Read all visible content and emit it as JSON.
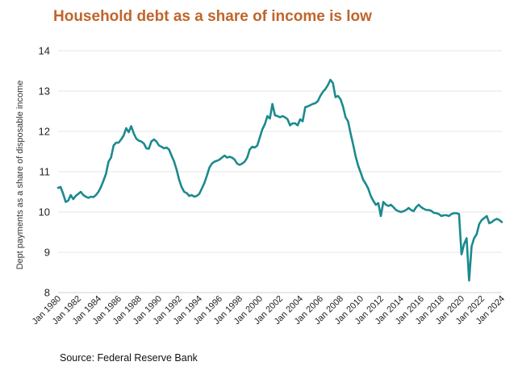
{
  "title": "Household debt as a share of income is low",
  "source": "Source: Federal Reserve Bank",
  "chart_data": {
    "type": "line",
    "ylabel": "Dept payments as a share of disposable income",
    "xlabel": "",
    "ylim": [
      8,
      14
    ],
    "yticks": [
      8,
      9,
      10,
      11,
      12,
      13,
      14
    ],
    "xlim": [
      1980.0,
      2024.0
    ],
    "xtick_labels": [
      "Jan 1980",
      "Jan 1982",
      "Jan 1984",
      "Jan 1986",
      "Jan 1988",
      "Jan 1990",
      "Jan 1992",
      "Jan 1994",
      "Jan 1996",
      "Jan 1998",
      "Jan 2000",
      "Jan 2002",
      "Jan 2004",
      "Jan 2006",
      "Jan 2008",
      "Jan 2010",
      "Jan 2012",
      "Jan 2014",
      "Jan 2016",
      "Jan 2018",
      "Jan 2020",
      "Jan 2022",
      "Jan 2024"
    ],
    "xtick_values": [
      1980,
      1982,
      1984,
      1986,
      1988,
      1990,
      1992,
      1994,
      1996,
      1998,
      2000,
      2002,
      2004,
      2006,
      2008,
      2010,
      2012,
      2014,
      2016,
      2018,
      2020,
      2022,
      2024
    ],
    "grid": "horizontal",
    "line_color": "#1a8a8e",
    "series": [
      {
        "x": [
          1980.0,
          1980.25,
          1980.5,
          1980.75,
          1981.0,
          1981.25,
          1981.5,
          1981.75,
          1982.0,
          1982.25,
          1982.5,
          1982.75,
          1983.0,
          1983.25,
          1983.5,
          1983.75,
          1984.0,
          1984.25,
          1984.5,
          1984.75,
          1985.0,
          1985.25,
          1985.5,
          1985.75,
          1986.0,
          1986.25,
          1986.5,
          1986.75,
          1987.0,
          1987.25,
          1987.5,
          1987.75,
          1988.0,
          1988.25,
          1988.5,
          1988.75,
          1989.0,
          1989.25,
          1989.5,
          1989.75,
          1990.0,
          1990.25,
          1990.5,
          1990.75,
          1991.0,
          1991.25,
          1991.5,
          1991.75,
          1992.0,
          1992.25,
          1992.5,
          1992.75,
          1993.0,
          1993.25,
          1993.5,
          1993.75,
          1994.0,
          1994.25,
          1994.5,
          1994.75,
          1995.0,
          1995.25,
          1995.5,
          1995.75,
          1996.0,
          1996.25,
          1996.5,
          1996.75,
          1997.0,
          1997.25,
          1997.5,
          1997.75,
          1998.0,
          1998.25,
          1998.5,
          1998.75,
          1999.0,
          1999.25,
          1999.5,
          1999.75,
          2000.0,
          2000.25,
          2000.5,
          2000.75,
          2001.0,
          2001.25,
          2001.5,
          2001.75,
          2002.0,
          2002.25,
          2002.5,
          2002.75,
          2003.0,
          2003.25,
          2003.5,
          2003.75,
          2004.0,
          2004.25,
          2004.5,
          2004.75,
          2005.0,
          2005.25,
          2005.5,
          2005.75,
          2006.0,
          2006.25,
          2006.5,
          2006.75,
          2007.0,
          2007.25,
          2007.5,
          2007.75,
          2008.0,
          2008.25,
          2008.5,
          2008.75,
          2009.0,
          2009.25,
          2009.5,
          2009.75,
          2010.0,
          2010.25,
          2010.5,
          2010.75,
          2011.0,
          2011.25,
          2011.5,
          2011.75,
          2012.0,
          2012.25,
          2012.5,
          2012.75,
          2013.0,
          2013.25,
          2013.5,
          2013.75,
          2014.0,
          2014.25,
          2014.5,
          2014.75,
          2015.0,
          2015.25,
          2015.5,
          2015.75,
          2016.0,
          2016.25,
          2016.5,
          2016.75,
          2017.0,
          2017.25,
          2017.5,
          2017.75,
          2018.0,
          2018.25,
          2018.5,
          2018.75,
          2019.0,
          2019.25,
          2019.5,
          2019.75,
          2020.0,
          2020.25,
          2020.5,
          2020.75,
          2021.0,
          2021.25,
          2021.5,
          2021.75,
          2022.0,
          2022.25,
          2022.5,
          2022.75,
          2023.0,
          2023.25,
          2023.5,
          2023.75,
          2024.0
        ],
        "y": [
          10.6,
          10.62,
          10.45,
          10.25,
          10.28,
          10.42,
          10.32,
          10.4,
          10.45,
          10.5,
          10.42,
          10.38,
          10.35,
          10.38,
          10.37,
          10.42,
          10.5,
          10.62,
          10.78,
          10.95,
          11.25,
          11.35,
          11.65,
          11.72,
          11.72,
          11.8,
          11.9,
          12.08,
          11.98,
          12.13,
          11.95,
          11.82,
          11.77,
          11.75,
          11.7,
          11.58,
          11.57,
          11.75,
          11.8,
          11.75,
          11.65,
          11.62,
          11.58,
          11.6,
          11.55,
          11.4,
          11.25,
          11.05,
          10.8,
          10.62,
          10.5,
          10.47,
          10.4,
          10.42,
          10.38,
          10.4,
          10.45,
          10.58,
          10.72,
          10.9,
          11.1,
          11.2,
          11.25,
          11.27,
          11.3,
          11.35,
          11.4,
          11.35,
          11.37,
          11.35,
          11.3,
          11.2,
          11.17,
          11.2,
          11.25,
          11.35,
          11.55,
          11.62,
          11.6,
          11.65,
          11.85,
          12.05,
          12.18,
          12.38,
          12.32,
          12.68,
          12.4,
          12.38,
          12.35,
          12.38,
          12.35,
          12.3,
          12.15,
          12.2,
          12.2,
          12.15,
          12.3,
          12.25,
          12.6,
          12.62,
          12.65,
          12.68,
          12.7,
          12.75,
          12.88,
          12.98,
          13.05,
          13.15,
          13.28,
          13.2,
          12.85,
          12.88,
          12.8,
          12.62,
          12.35,
          12.25,
          11.95,
          11.68,
          11.38,
          11.15,
          10.98,
          10.8,
          10.7,
          10.58,
          10.4,
          10.28,
          10.18,
          10.22,
          9.9,
          10.25,
          10.18,
          10.15,
          10.18,
          10.12,
          10.05,
          10.02,
          10.0,
          10.02,
          10.05,
          10.1,
          10.05,
          10.02,
          10.12,
          10.18,
          10.12,
          10.08,
          10.05,
          10.05,
          10.03,
          9.98,
          9.97,
          9.95,
          9.9,
          9.92,
          9.92,
          9.9,
          9.95,
          9.97,
          9.97,
          9.95,
          8.95,
          9.2,
          9.35,
          8.3,
          9.15,
          9.35,
          9.45,
          9.7,
          9.8,
          9.85,
          9.9,
          9.72,
          9.75,
          9.8,
          9.83,
          9.8,
          9.75
        ]
      }
    ]
  }
}
